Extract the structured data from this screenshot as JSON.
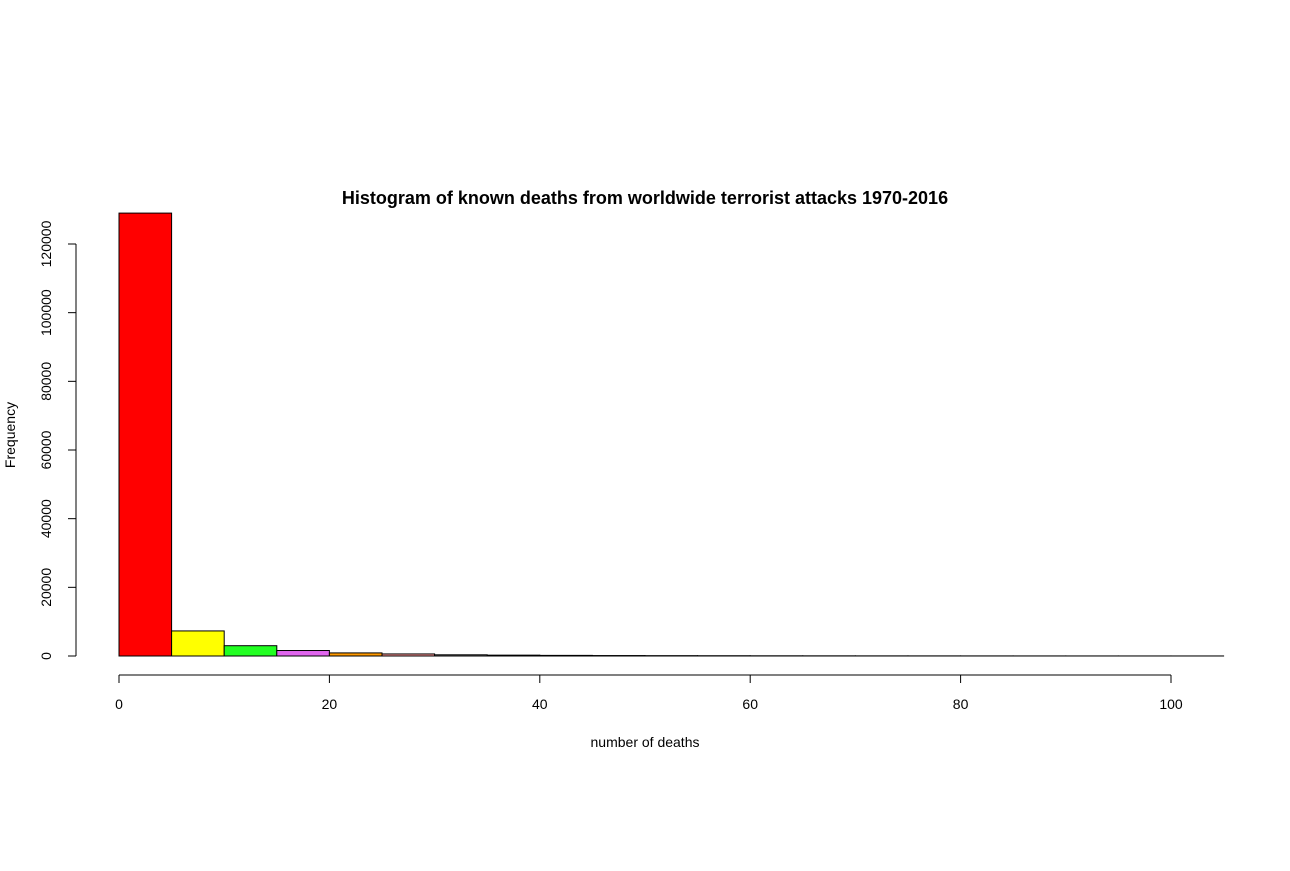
{
  "chart_data": {
    "type": "bar",
    "title": "Histogram of known deaths from worldwide terrorist attacks 1970-2016",
    "xlabel": "number of deaths",
    "ylabel": "Frequency",
    "xlim": [
      0,
      100
    ],
    "ylim": [
      0,
      120000
    ],
    "x_ticks": [
      "0",
      "20",
      "40",
      "60",
      "80",
      "100"
    ],
    "y_ticks": [
      "0",
      "20000",
      "40000",
      "60000",
      "80000",
      "100000",
      "120000"
    ],
    "bin_width": 5,
    "bins": [
      {
        "start": 0,
        "end": 5,
        "value": 129000,
        "color": "#ff0000"
      },
      {
        "start": 5,
        "end": 10,
        "value": 7300,
        "color": "#ffff00"
      },
      {
        "start": 10,
        "end": 15,
        "value": 3000,
        "color": "#22ff22"
      },
      {
        "start": 15,
        "end": 20,
        "value": 1600,
        "color": "#e066ee"
      },
      {
        "start": 20,
        "end": 25,
        "value": 900,
        "color": "#ff9900"
      },
      {
        "start": 25,
        "end": 30,
        "value": 600,
        "color": "#ff9999"
      },
      {
        "start": 30,
        "end": 35,
        "value": 350,
        "color": "#aaaaaa"
      },
      {
        "start": 35,
        "end": 40,
        "value": 250,
        "color": "#aaaaaa"
      },
      {
        "start": 40,
        "end": 45,
        "value": 180,
        "color": "#aaaaaa"
      },
      {
        "start": 45,
        "end": 50,
        "value": 130,
        "color": "#aaaaaa"
      },
      {
        "start": 50,
        "end": 55,
        "value": 100,
        "color": "#aaaaaa"
      },
      {
        "start": 55,
        "end": 60,
        "value": 80,
        "color": "#aaaaaa"
      },
      {
        "start": 60,
        "end": 65,
        "value": 60,
        "color": "#aaaaaa"
      },
      {
        "start": 65,
        "end": 70,
        "value": 50,
        "color": "#aaaaaa"
      },
      {
        "start": 70,
        "end": 75,
        "value": 40,
        "color": "#aaaaaa"
      },
      {
        "start": 75,
        "end": 80,
        "value": 35,
        "color": "#aaaaaa"
      },
      {
        "start": 80,
        "end": 85,
        "value": 30,
        "color": "#aaaaaa"
      },
      {
        "start": 85,
        "end": 90,
        "value": 25,
        "color": "#aaaaaa"
      },
      {
        "start": 90,
        "end": 95,
        "value": 20,
        "color": "#aaaaaa"
      },
      {
        "start": 95,
        "end": 100,
        "value": 18,
        "color": "#aaaaaa"
      },
      {
        "start": 100,
        "end": 105,
        "value": 15,
        "color": "#aaaaaa"
      }
    ],
    "grid": false,
    "legend": "none"
  }
}
